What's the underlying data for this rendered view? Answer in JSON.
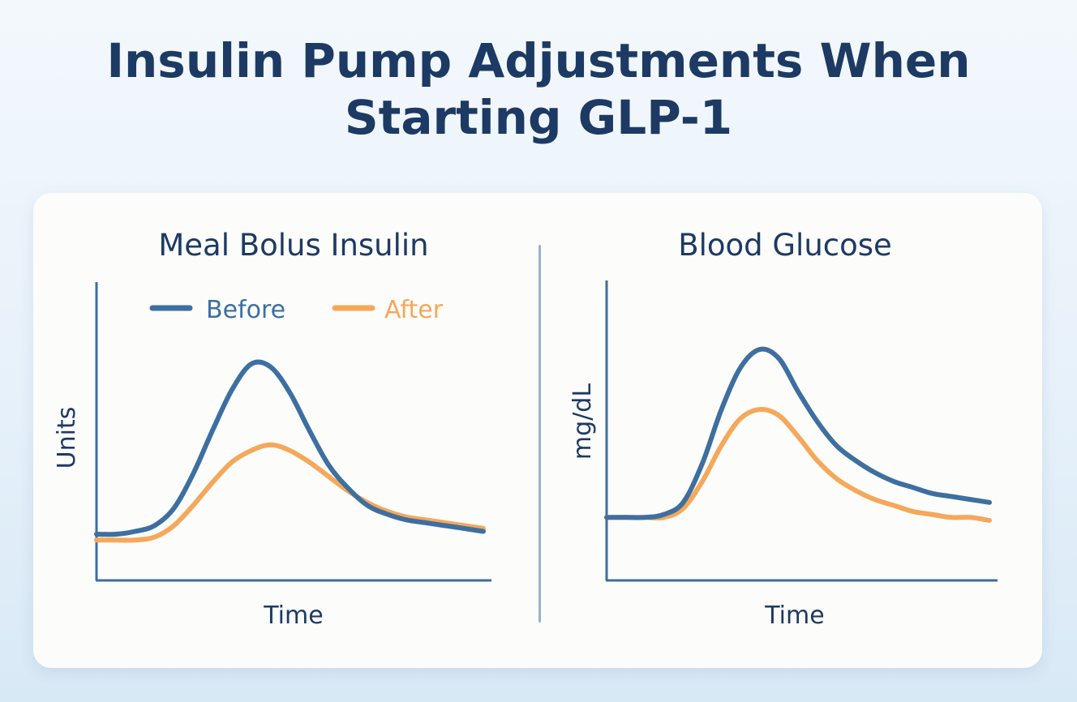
{
  "title": {
    "line1": "Insulin Pump Adjustments When",
    "line2": "Starting GLP-1"
  },
  "colors": {
    "before": "#3d6fa0",
    "after": "#f5a85a",
    "axis": "#3d6fa0",
    "text": "#1c3a63",
    "divider": "#9ab3c9"
  },
  "legend": {
    "before": "Before",
    "after": "After"
  },
  "chart_data": [
    {
      "type": "line",
      "title": "Meal Bolus Insulin",
      "xlabel": "Time",
      "ylabel": "Units",
      "grid": false,
      "legend_position": "top",
      "x": [
        0,
        0.5,
        1,
        1.5,
        2,
        2.5,
        3,
        3.5,
        4,
        4.5,
        5,
        5.5,
        6,
        6.5,
        7,
        7.5,
        8,
        8.5,
        9,
        9.5,
        10
      ],
      "xlim": [
        0,
        10
      ],
      "ylim": [
        0,
        100
      ],
      "series": [
        {
          "name": "Before",
          "color_key": "before",
          "values": [
            16,
            16,
            17,
            19,
            25,
            37,
            52,
            66,
            75,
            74,
            65,
            52,
            40,
            32,
            26,
            23,
            21,
            20,
            19,
            18,
            17
          ]
        },
        {
          "name": "After",
          "color_key": "after",
          "values": [
            14,
            14,
            14,
            15,
            19,
            26,
            34,
            41,
            45,
            47,
            45,
            41,
            36,
            31,
            27,
            24,
            22,
            21,
            20,
            19,
            18
          ]
        }
      ]
    },
    {
      "type": "line",
      "title": "Blood Glucose",
      "xlabel": "Time",
      "ylabel": "mg/dL",
      "grid": false,
      "x": [
        0,
        0.5,
        1,
        1.5,
        2,
        2.5,
        3,
        3.5,
        4,
        4.5,
        5,
        5.5,
        6,
        6.5,
        7,
        7.5,
        8,
        8.5,
        9,
        9.5,
        10
      ],
      "xlim": [
        0,
        10
      ],
      "ylim": [
        0,
        100
      ],
      "series": [
        {
          "name": "Before",
          "color_key": "before",
          "values": [
            21,
            21,
            21,
            22,
            26,
            39,
            57,
            71,
            77,
            74,
            63,
            53,
            45,
            40,
            36,
            33,
            31,
            29,
            28,
            27,
            26
          ]
        },
        {
          "name": "After",
          "color_key": "after",
          "values": [
            21,
            21,
            21,
            21,
            24,
            33,
            45,
            54,
            57,
            55,
            48,
            40,
            34,
            30,
            27,
            25,
            23,
            22,
            21,
            21,
            20
          ]
        }
      ]
    }
  ]
}
